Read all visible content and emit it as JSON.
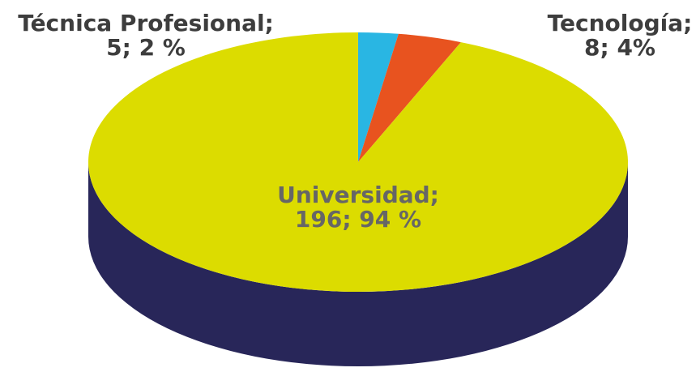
{
  "chart_data": {
    "type": "pie3d",
    "categories": [
      "Técnica Profesional;",
      "Tecnología;",
      "Universidad;"
    ],
    "values": [
      5,
      8,
      196
    ],
    "value_labels": [
      "5; 2 %",
      "8; 4%",
      "196; 94 %"
    ],
    "colors": [
      "#29b6e3",
      "#e8531f",
      "#dcdc00"
    ],
    "side_color": "#282659"
  }
}
